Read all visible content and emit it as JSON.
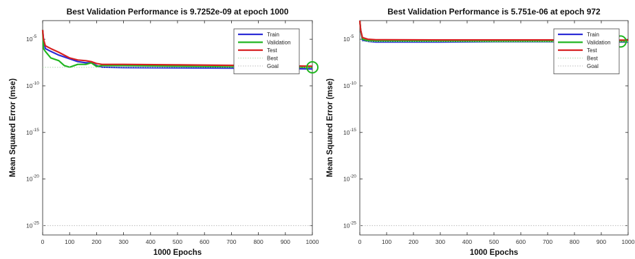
{
  "chart_data": [
    {
      "type": "line",
      "title": "Best Validation Performance is 9.7252e-09 at epoch 1000",
      "xlabel": "1000 Epochs",
      "ylabel": "Mean Squared Error  (mse)",
      "xlim": [
        0,
        1000
      ],
      "ylim_log10": [
        -26,
        -3
      ],
      "yscale": "log",
      "xticks": [
        "0",
        "100",
        "200",
        "300",
        "400",
        "500",
        "600",
        "700",
        "800",
        "900",
        "1000"
      ],
      "yticks": [
        {
          "base": "10",
          "exp": "-5"
        },
        {
          "base": "10",
          "exp": "-10"
        },
        {
          "base": "10",
          "exp": "-15"
        },
        {
          "base": "10",
          "exp": "-20"
        },
        {
          "base": "10",
          "exp": "-25"
        }
      ],
      "grid": false,
      "legend_position": "top-right",
      "series": [
        {
          "name": "Train",
          "color": "#2b2bd6",
          "style": "solid",
          "x": [
            0,
            3,
            10,
            30,
            60,
            100,
            130,
            160,
            180,
            200,
            220,
            300,
            500,
            700,
            800,
            900,
            1000
          ],
          "y": [
            0.0001,
            1e-05,
            1e-06,
            5e-07,
            2e-07,
            8e-08,
            4e-08,
            3e-08,
            3e-08,
            1.5e-08,
            1e-08,
            9e-09,
            8.5e-09,
            8e-09,
            7.5e-09,
            7e-09,
            6.5e-09
          ]
        },
        {
          "name": "Validation",
          "color": "#1fb51f",
          "style": "solid",
          "x": [
            0,
            3,
            10,
            30,
            60,
            80,
            100,
            130,
            160,
            180,
            200,
            220,
            300,
            500,
            700,
            800,
            900,
            1000
          ],
          "y": [
            0.0001,
            1e-06,
            5e-07,
            1e-07,
            5e-08,
            1.5e-08,
            1e-08,
            2e-08,
            2e-08,
            3e-08,
            1.2e-08,
            1.5e-08,
            1.5e-08,
            1.3e-08,
            1.1e-08,
            1e-08,
            9.8e-09,
            9.7252e-09
          ]
        },
        {
          "name": "Test",
          "color": "#d62020",
          "style": "solid",
          "x": [
            0,
            3,
            10,
            30,
            60,
            100,
            130,
            160,
            180,
            200,
            220,
            300,
            500,
            700,
            800,
            900,
            1000
          ],
          "y": [
            0.0001,
            1e-05,
            2e-06,
            1e-06,
            4e-07,
            1e-07,
            6e-08,
            5e-08,
            4e-08,
            2.5e-08,
            2e-08,
            2e-08,
            1.8e-08,
            1.6e-08,
            1.5e-08,
            1.4e-08,
            1.3e-08
          ]
        },
        {
          "name": "Best",
          "color": "#a8d5a8",
          "style": "dotted",
          "x": [
            0,
            1000
          ],
          "y": [
            9.7252e-09,
            9.7252e-09
          ]
        },
        {
          "name": "Goal",
          "color": "#bbbbbb",
          "style": "dotted",
          "x": [
            0,
            1000
          ],
          "y": [
            1e-25,
            1e-25
          ]
        }
      ],
      "best_marker": {
        "x": 1000,
        "y": 9.7252e-09,
        "color": "#1fb51f"
      }
    },
    {
      "type": "line",
      "title": "Best Validation Performance is 5.751e-06 at epoch 972",
      "xlabel": "1000 Epochs",
      "ylabel": "Mean Squared Error  (mse)",
      "xlim": [
        0,
        1000
      ],
      "ylim_log10": [
        -26,
        -3
      ],
      "yscale": "log",
      "xticks": [
        "0",
        "100",
        "200",
        "300",
        "400",
        "500",
        "600",
        "700",
        "800",
        "900",
        "1000"
      ],
      "yticks": [
        {
          "base": "10",
          "exp": "-5"
        },
        {
          "base": "10",
          "exp": "-10"
        },
        {
          "base": "10",
          "exp": "-15"
        },
        {
          "base": "10",
          "exp": "-20"
        },
        {
          "base": "10",
          "exp": "-25"
        }
      ],
      "grid": false,
      "legend_position": "top-right",
      "series": [
        {
          "name": "Train",
          "color": "#2b2bd6",
          "style": "solid",
          "x": [
            0,
            3,
            10,
            30,
            60,
            100,
            300,
            500,
            700,
            900,
            1000
          ],
          "y": [
            0.001,
            0.0001,
            8e-06,
            6e-06,
            5e-06,
            5e-06,
            5e-06,
            5.5e-06,
            5.5e-06,
            5.2e-06,
            5e-06
          ]
        },
        {
          "name": "Validation",
          "color": "#1fb51f",
          "style": "solid",
          "x": [
            0,
            3,
            10,
            30,
            60,
            100,
            300,
            500,
            700,
            900,
            972,
            1000
          ],
          "y": [
            0.001,
            0.0001,
            1e-05,
            7e-06,
            6.5e-06,
            6.5e-06,
            6.2e-06,
            6e-06,
            6e-06,
            5.8e-06,
            5.751e-06,
            5.8e-06
          ]
        },
        {
          "name": "Test",
          "color": "#d62020",
          "style": "solid",
          "x": [
            0,
            3,
            10,
            30,
            60,
            100,
            300,
            500,
            700,
            900,
            1000
          ],
          "y": [
            0.001,
            0.0001,
            1.5e-05,
            1e-05,
            9e-06,
            9e-06,
            8.5e-06,
            8.5e-06,
            8.5e-06,
            8e-06,
            8e-06
          ]
        },
        {
          "name": "Best",
          "color": "#a8d5a8",
          "style": "dotted",
          "x": [
            0,
            1000
          ],
          "y": [
            5.751e-06,
            5.751e-06
          ]
        },
        {
          "name": "Goal",
          "color": "#bbbbbb",
          "style": "dotted",
          "x": [
            0,
            1000
          ],
          "y": [
            1e-25,
            1e-25
          ]
        }
      ],
      "best_marker": {
        "x": 972,
        "y": 5.751e-06,
        "color": "#1fb51f"
      }
    }
  ]
}
